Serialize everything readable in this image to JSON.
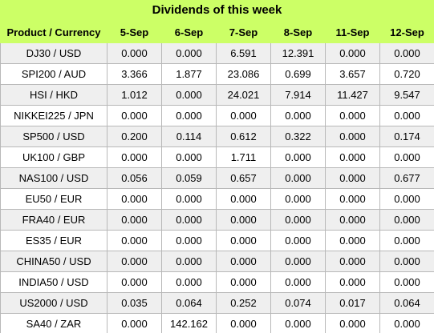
{
  "title": "Dividends of this week",
  "table": {
    "columns": [
      "Product / Currency",
      "5-Sep",
      "6-Sep",
      "7-Sep",
      "8-Sep",
      "11-Sep",
      "12-Sep"
    ],
    "rows": [
      {
        "product": "DJ30 / USD",
        "values": [
          "0.000",
          "0.000",
          "6.591",
          "12.391",
          "0.000",
          "0.000"
        ]
      },
      {
        "product": "SPI200 / AUD",
        "values": [
          "3.366",
          "1.877",
          "23.086",
          "0.699",
          "3.657",
          "0.720"
        ]
      },
      {
        "product": "HSI / HKD",
        "values": [
          "1.012",
          "0.000",
          "24.021",
          "7.914",
          "11.427",
          "9.547"
        ]
      },
      {
        "product": "NIKKEI225 / JPN",
        "values": [
          "0.000",
          "0.000",
          "0.000",
          "0.000",
          "0.000",
          "0.000"
        ]
      },
      {
        "product": "SP500 / USD",
        "values": [
          "0.200",
          "0.114",
          "0.612",
          "0.322",
          "0.000",
          "0.174"
        ]
      },
      {
        "product": "UK100 / GBP",
        "values": [
          "0.000",
          "0.000",
          "1.711",
          "0.000",
          "0.000",
          "0.000"
        ]
      },
      {
        "product": "NAS100 / USD",
        "values": [
          "0.056",
          "0.059",
          "0.657",
          "0.000",
          "0.000",
          "0.677"
        ]
      },
      {
        "product": "EU50 / EUR",
        "values": [
          "0.000",
          "0.000",
          "0.000",
          "0.000",
          "0.000",
          "0.000"
        ]
      },
      {
        "product": "FRA40 / EUR",
        "values": [
          "0.000",
          "0.000",
          "0.000",
          "0.000",
          "0.000",
          "0.000"
        ]
      },
      {
        "product": "ES35 / EUR",
        "values": [
          "0.000",
          "0.000",
          "0.000",
          "0.000",
          "0.000",
          "0.000"
        ]
      },
      {
        "product": "CHINA50 / USD",
        "values": [
          "0.000",
          "0.000",
          "0.000",
          "0.000",
          "0.000",
          "0.000"
        ]
      },
      {
        "product": "INDIA50 / USD",
        "values": [
          "0.000",
          "0.000",
          "0.000",
          "0.000",
          "0.000",
          "0.000"
        ]
      },
      {
        "product": "US2000 / USD",
        "values": [
          "0.035",
          "0.064",
          "0.252",
          "0.074",
          "0.017",
          "0.064"
        ]
      },
      {
        "product": "SA40 / ZAR",
        "values": [
          "0.000",
          "142.162",
          "0.000",
          "0.000",
          "0.000",
          "0.000"
        ]
      }
    ]
  },
  "colors": {
    "header_bg": "#ccff66",
    "row_alt_bg": "#efefef",
    "border": "#b8b8b8"
  }
}
